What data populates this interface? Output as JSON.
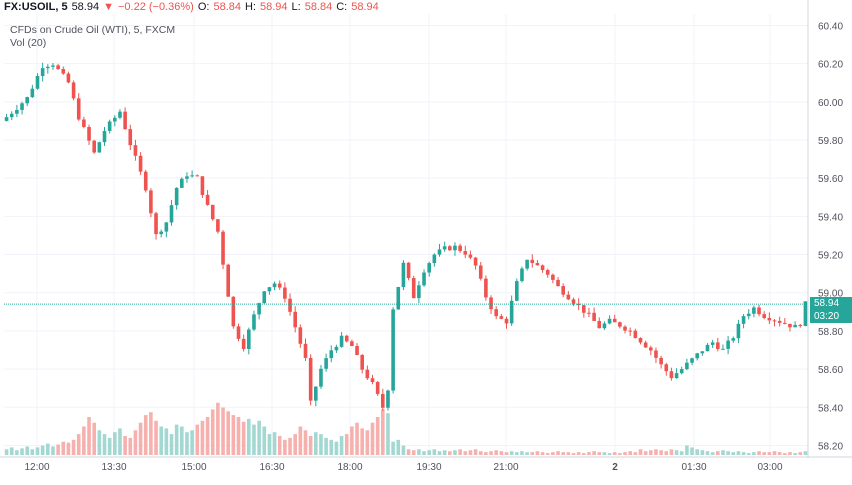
{
  "header": {
    "symbol": "FX:USOIL, 5",
    "last": "58.94",
    "arrow": "▼",
    "change": "−0.22 (−0.36%)",
    "o_label": "O:",
    "o_value": "58.84",
    "h_label": "H:",
    "h_value": "58.94",
    "l_label": "L:",
    "l_value": "58.84",
    "c_label": "C:",
    "c_value": "58.94"
  },
  "legend": {
    "series": "CFDs on Crude Oil (WTI), 5, FXCM",
    "volume": "Vol (20)"
  },
  "price_marker": {
    "value": "58.94",
    "countdown": "03:20"
  },
  "colors": {
    "up": "#26a69a",
    "down": "#ef5350",
    "up_volume": "#a3d8d2",
    "down_volume": "#f6b1ae",
    "grid": "#f0f3fa",
    "axis_text": "#50535e",
    "price_line": "#26a69a"
  },
  "chart_data": {
    "type": "candlestick",
    "y_range": [
      58.15,
      60.46
    ],
    "y_ticks": [
      "60.40",
      "60.20",
      "60.00",
      "59.80",
      "59.60",
      "59.40",
      "59.20",
      "59.00",
      "58.80",
      "58.60",
      "58.40",
      "58.20"
    ],
    "x_ticks": [
      "12:00",
      "13:30",
      "15:00",
      "16:30",
      "18:00",
      "19:30",
      "21:00",
      "2",
      "01:30",
      "03:00"
    ],
    "grid": true,
    "close_path": [
      [
        0,
        59.92
      ],
      [
        4,
        60.02
      ],
      [
        7,
        60.19
      ],
      [
        9,
        60.2
      ],
      [
        12,
        60.1
      ],
      [
        14,
        59.92
      ],
      [
        17,
        59.73
      ],
      [
        19,
        59.85
      ],
      [
        22,
        59.95
      ],
      [
        24,
        59.78
      ],
      [
        27,
        59.55
      ],
      [
        29,
        59.3
      ],
      [
        31,
        59.37
      ],
      [
        33,
        59.55
      ],
      [
        35,
        59.62
      ],
      [
        37,
        59.6
      ],
      [
        39,
        59.45
      ],
      [
        41,
        59.32
      ],
      [
        43,
        58.99
      ],
      [
        44,
        58.82
      ],
      [
        46,
        58.72
      ],
      [
        48,
        58.88
      ],
      [
        50,
        59.02
      ],
      [
        52,
        59.05
      ],
      [
        54,
        58.98
      ],
      [
        56,
        58.82
      ],
      [
        58,
        58.65
      ],
      [
        59,
        58.42
      ],
      [
        61,
        58.6
      ],
      [
        63,
        58.7
      ],
      [
        65,
        58.76
      ],
      [
        67,
        58.72
      ],
      [
        69,
        58.6
      ],
      [
        71,
        58.52
      ],
      [
        73,
        58.4
      ],
      [
        74,
        58.5
      ],
      [
        75,
        58.92
      ],
      [
        77,
        59.15
      ],
      [
        79,
        58.98
      ],
      [
        81,
        59.12
      ],
      [
        83,
        59.2
      ],
      [
        85,
        59.23
      ],
      [
        87,
        59.24
      ],
      [
        89,
        59.21
      ],
      [
        91,
        59.14
      ],
      [
        93,
        58.98
      ],
      [
        95,
        58.87
      ],
      [
        97,
        58.85
      ],
      [
        99,
        59.05
      ],
      [
        101,
        59.18
      ],
      [
        103,
        59.14
      ],
      [
        105,
        59.1
      ],
      [
        107,
        59.03
      ],
      [
        109,
        58.98
      ],
      [
        111,
        58.93
      ],
      [
        113,
        58.88
      ],
      [
        115,
        58.82
      ],
      [
        117,
        58.85
      ],
      [
        119,
        58.83
      ],
      [
        121,
        58.8
      ],
      [
        123,
        58.75
      ],
      [
        125,
        58.7
      ],
      [
        127,
        58.62
      ],
      [
        129,
        58.56
      ],
      [
        131,
        58.6
      ],
      [
        133,
        58.65
      ],
      [
        135,
        58.7
      ],
      [
        137,
        58.74
      ],
      [
        139,
        58.7
      ],
      [
        141,
        58.77
      ],
      [
        143,
        58.88
      ],
      [
        145,
        58.92
      ],
      [
        147,
        58.88
      ],
      [
        149,
        58.86
      ],
      [
        151,
        58.84
      ],
      [
        153,
        58.82
      ],
      [
        154,
        58.84
      ],
      [
        155,
        58.94
      ]
    ],
    "volume_max": 100,
    "volume": [
      6,
      8,
      5,
      7,
      9,
      6,
      8,
      10,
      12,
      9,
      11,
      14,
      13,
      16,
      22,
      30,
      40,
      34,
      26,
      22,
      18,
      24,
      28,
      20,
      18,
      26,
      34,
      42,
      45,
      36,
      30,
      28,
      22,
      32,
      30,
      24,
      26,
      32,
      36,
      40,
      48,
      55,
      50,
      46,
      42,
      40,
      35,
      38,
      32,
      36,
      30,
      22,
      24,
      20,
      16,
      18,
      22,
      30,
      26,
      20,
      24,
      22,
      18,
      16,
      14,
      20,
      22,
      30,
      34,
      28,
      26,
      34,
      40,
      48,
      44,
      14,
      16,
      10,
      6,
      5,
      6,
      4,
      5,
      6,
      4,
      5,
      4,
      5,
      6,
      4,
      5,
      6,
      4,
      3,
      4,
      5,
      4,
      3,
      4,
      3,
      4,
      3,
      3,
      4,
      3,
      2,
      3,
      4,
      3,
      3,
      2,
      3,
      2,
      3,
      4,
      3,
      3,
      2,
      3,
      2,
      3,
      4,
      3,
      6,
      4,
      5,
      6,
      5,
      4,
      6,
      5,
      4,
      10,
      8,
      6,
      5,
      4,
      3,
      4,
      5,
      4,
      3,
      4,
      3,
      2,
      3,
      4,
      3,
      3,
      4,
      3,
      2,
      3,
      2,
      3,
      4
    ]
  }
}
